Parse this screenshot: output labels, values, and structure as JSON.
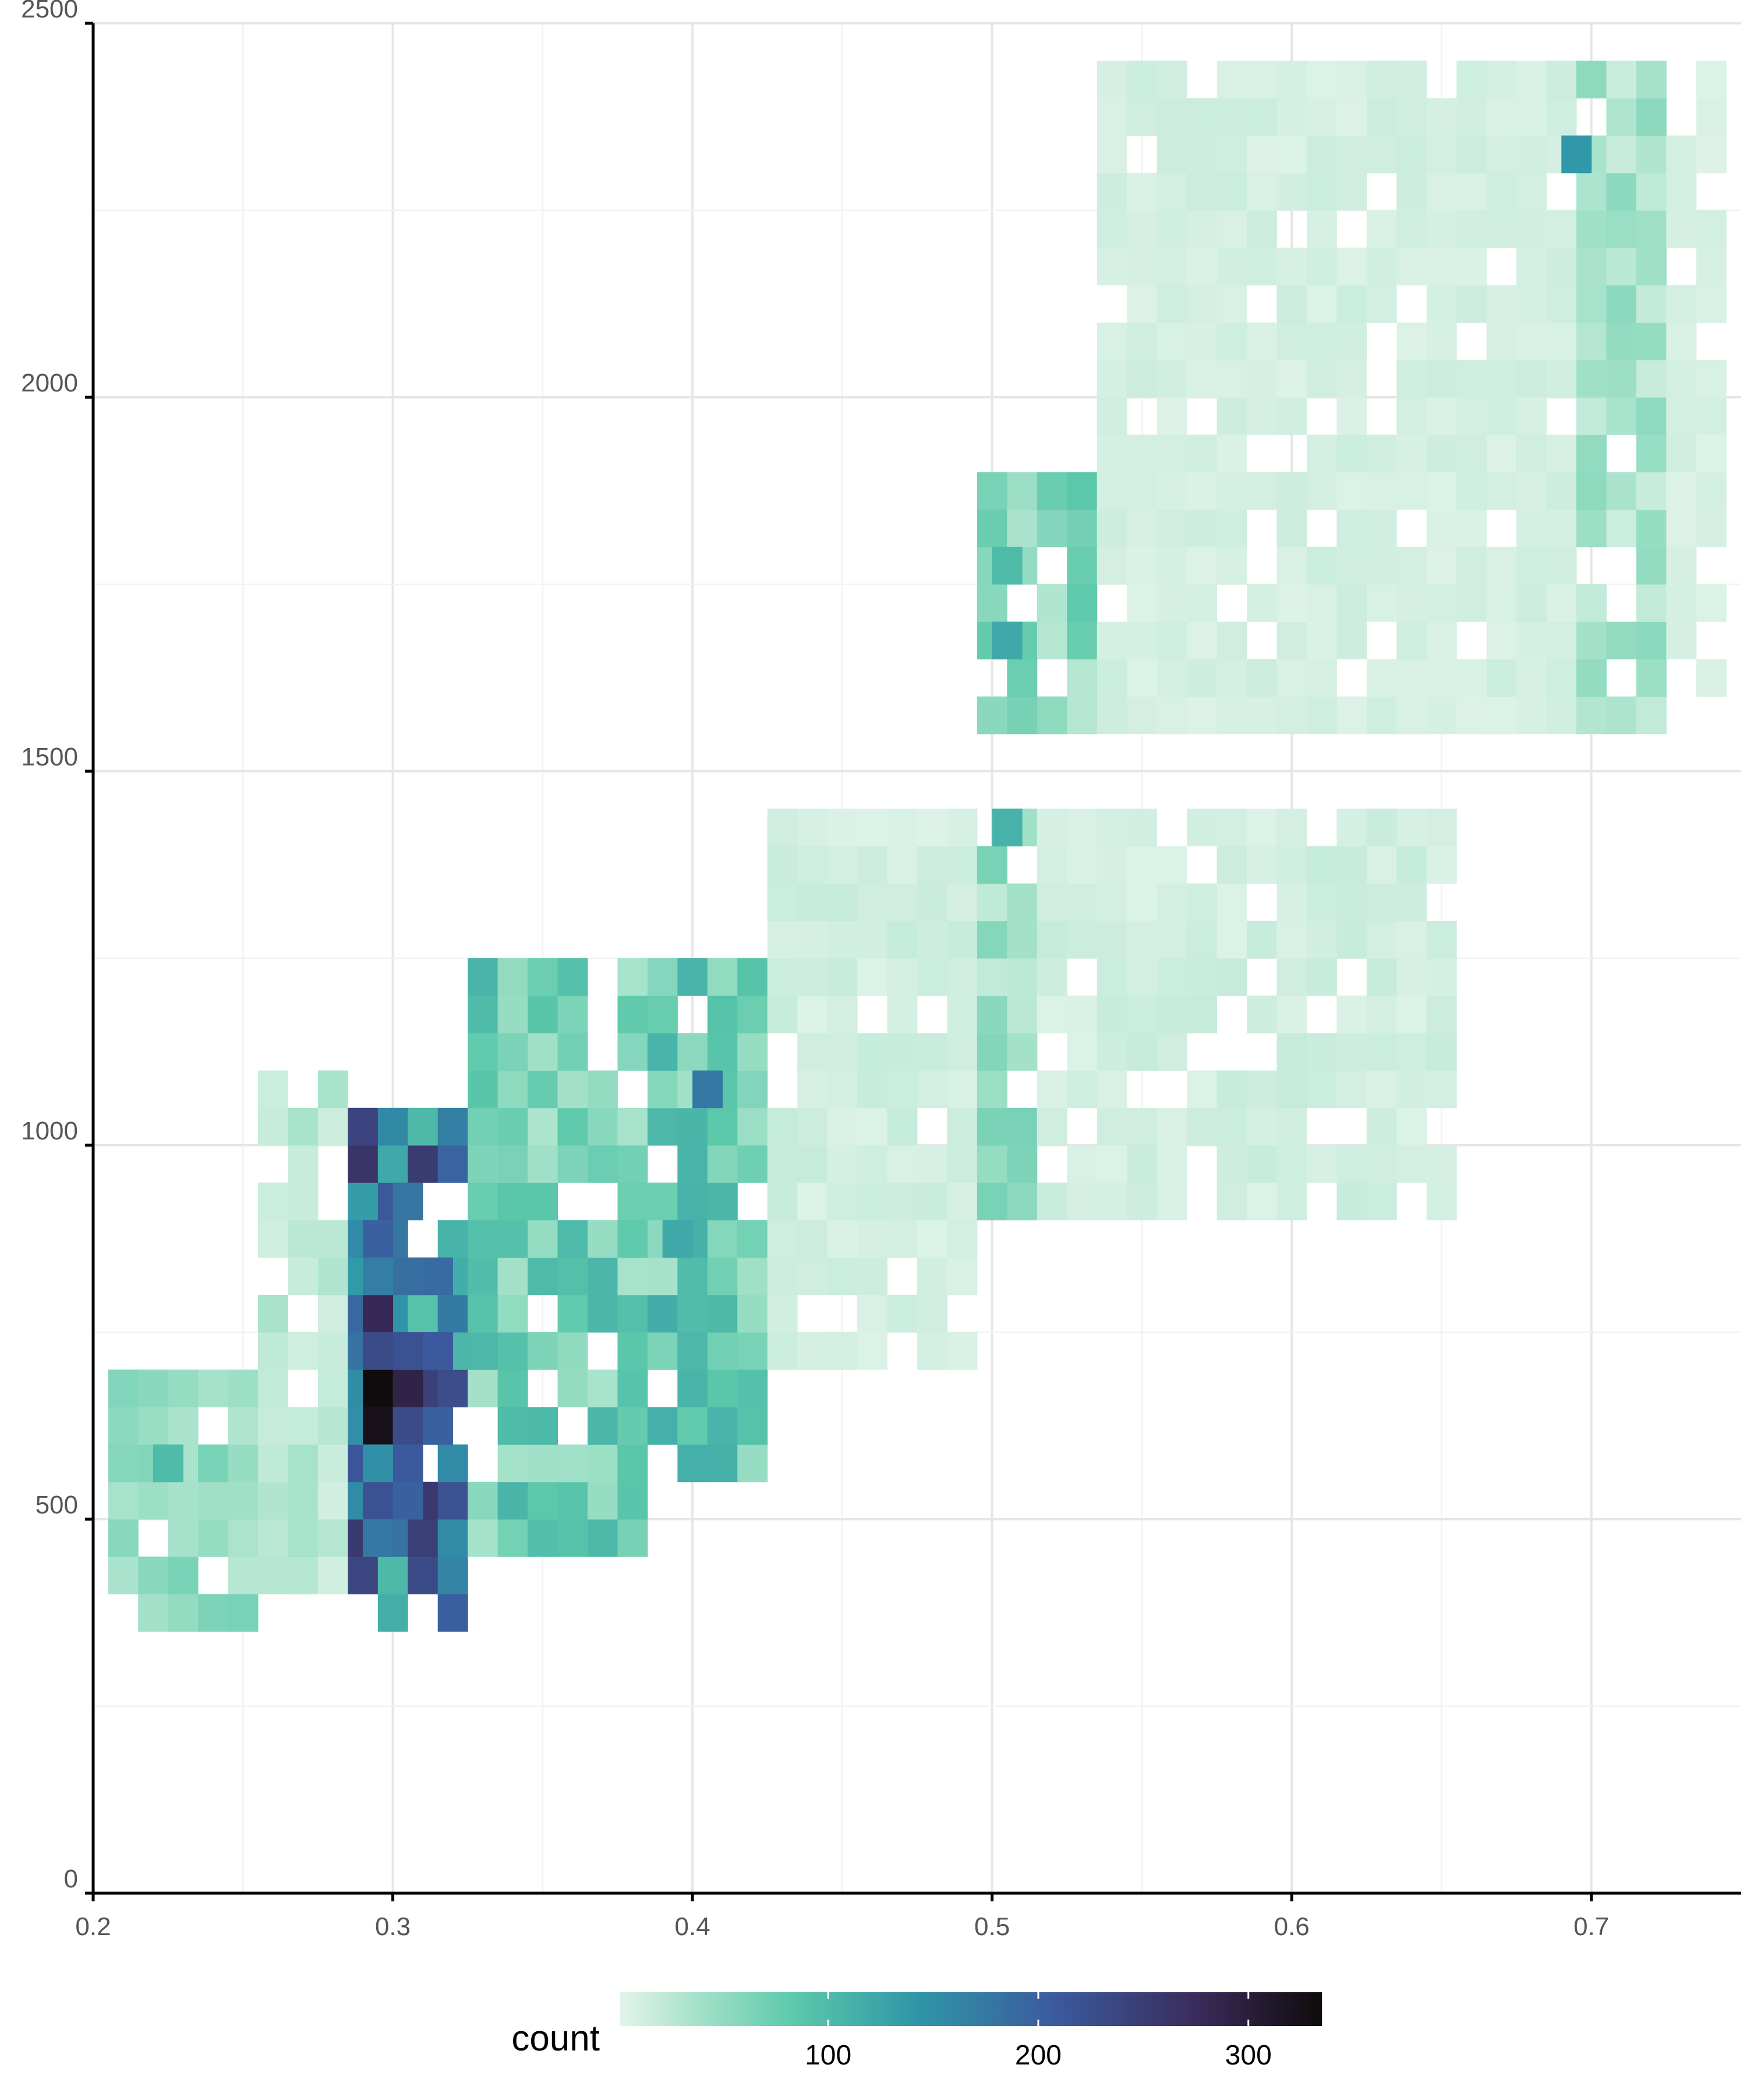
{
  "chart_data": {
    "type": "heatmap",
    "title": "",
    "xlabel": "",
    "ylabel": "",
    "x_ticks": [
      "0.2",
      "0.3",
      "0.4",
      "0.5",
      "0.6",
      "0.7"
    ],
    "x_tick_values": [
      0.2,
      0.3,
      0.4,
      0.5,
      0.6,
      0.7
    ],
    "y_ticks": [
      "0",
      "500",
      "1000",
      "1500",
      "2000",
      "2500"
    ],
    "y_tick_values": [
      0,
      500,
      1000,
      1500,
      2000,
      2500
    ],
    "xlim": [
      0.2,
      0.75
    ],
    "ylim": [
      0,
      2500
    ],
    "bin_width_x": 0.01,
    "bin_width_y": 50,
    "grid": true,
    "legend": {
      "title": "count",
      "position": "bottom",
      "ticks": [
        "100",
        "200",
        "300"
      ],
      "tick_values": [
        100,
        200,
        300
      ],
      "range": [
        1,
        335
      ]
    },
    "colors": {
      "low": "#e3f4ea",
      "c2": "#9fe0c7",
      "c3": "#5bc8aa",
      "c4": "#2f97a8",
      "c5": "#3b5a9e",
      "c6": "#3a2c5c",
      "high": "#100b0c",
      "grid_major": "#e6e6e6",
      "grid_minor": "#f2f2f2",
      "axis": "#000000",
      "tick_label": "#555555"
    },
    "point_clouds": [
      {
        "x": [
          0.205,
          0.255
        ],
        "y": [
          350,
          700
        ],
        "level": 45
      },
      {
        "x": [
          0.255,
          0.285
        ],
        "y": [
          400,
          1100
        ],
        "level": 25
      },
      {
        "x": [
          0.285,
          0.325
        ],
        "y": [
          350,
          1050
        ],
        "level": 170
      },
      {
        "x": [
          0.325,
          0.385
        ],
        "y": [
          450,
          1250
        ],
        "level": 70
      },
      {
        "x": [
          0.385,
          0.425
        ],
        "y": [
          550,
          1250
        ],
        "level": 80
      },
      {
        "x": [
          0.425,
          0.495
        ],
        "y": [
          700,
          1450
        ],
        "level": 12
      },
      {
        "x": [
          0.495,
          0.515
        ],
        "y": [
          900,
          1450
        ],
        "level": 45
      },
      {
        "x": [
          0.515,
          0.655
        ],
        "y": [
          900,
          1450
        ],
        "level": 12
      },
      {
        "x": [
          0.495,
          0.535
        ],
        "y": [
          1550,
          1900
        ],
        "level": 55
      },
      {
        "x": [
          0.535,
          0.695
        ],
        "y": [
          1550,
          2450
        ],
        "level": 10
      },
      {
        "x": [
          0.695,
          0.725
        ],
        "y": [
          1550,
          2450
        ],
        "level": 35
      },
      {
        "x": [
          0.725,
          0.745
        ],
        "y": [
          1600,
          2450
        ],
        "level": 8
      }
    ],
    "hot_bins": [
      {
        "x": 0.295,
        "y": 675,
        "count": 335
      },
      {
        "x": 0.295,
        "y": 625,
        "count": 325
      },
      {
        "x": 0.305,
        "y": 675,
        "count": 290
      },
      {
        "x": 0.295,
        "y": 775,
        "count": 280
      },
      {
        "x": 0.295,
        "y": 725,
        "count": 230
      },
      {
        "x": 0.305,
        "y": 625,
        "count": 230
      },
      {
        "x": 0.305,
        "y": 725,
        "count": 220
      },
      {
        "x": 0.315,
        "y": 725,
        "count": 210
      },
      {
        "x": 0.295,
        "y": 875,
        "count": 200
      },
      {
        "x": 0.295,
        "y": 525,
        "count": 220
      },
      {
        "x": 0.305,
        "y": 525,
        "count": 200
      },
      {
        "x": 0.305,
        "y": 575,
        "count": 210
      },
      {
        "x": 0.315,
        "y": 625,
        "count": 200
      },
      {
        "x": 0.315,
        "y": 825,
        "count": 190
      },
      {
        "x": 0.305,
        "y": 925,
        "count": 180
      },
      {
        "x": 0.305,
        "y": 825,
        "count": 185
      },
      {
        "x": 0.295,
        "y": 825,
        "count": 170
      },
      {
        "x": 0.295,
        "y": 575,
        "count": 150
      },
      {
        "x": 0.295,
        "y": 475,
        "count": 175
      },
      {
        "x": 0.405,
        "y": 1075,
        "count": 175
      },
      {
        "x": 0.695,
        "y": 2325,
        "count": 140
      },
      {
        "x": 0.505,
        "y": 1675,
        "count": 120
      },
      {
        "x": 0.505,
        "y": 1425,
        "count": 110
      },
      {
        "x": 0.505,
        "y": 1775,
        "count": 100
      },
      {
        "x": 0.395,
        "y": 875,
        "count": 120
      },
      {
        "x": 0.225,
        "y": 575,
        "count": 100
      }
    ]
  }
}
